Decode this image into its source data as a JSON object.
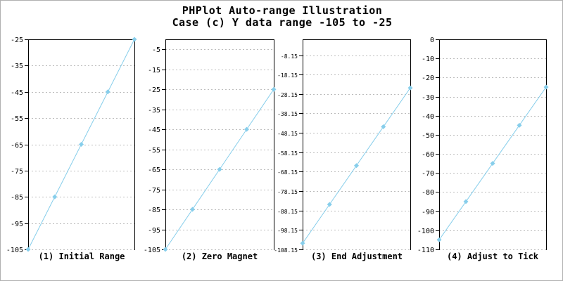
{
  "page_title": {
    "line1": "PHPlot Auto-range Illustration",
    "line2": "Case (c) Y data range -105 to -25"
  },
  "colors": {
    "background": "#ffffff",
    "image_border": "#b0b0b0",
    "axis": "#000000",
    "grid": "#bdbdbd",
    "text": "#000000",
    "series": "#87CEEB"
  },
  "chart_data": [
    {
      "type": "line",
      "title": "(1) Initial Range",
      "x": [
        1,
        2,
        3,
        4,
        5
      ],
      "values": [
        -105,
        -85,
        -65,
        -45,
        -25
      ],
      "ylim": [
        -105,
        -25
      ],
      "y_ticks": [
        -25,
        -35,
        -45,
        -55,
        -65,
        -75,
        -85,
        -95,
        -105
      ],
      "marker": "diamond",
      "grid": "horizontal-dashed",
      "legend": "none"
    },
    {
      "type": "line",
      "title": "(2) Zero Magnet",
      "x": [
        1,
        2,
        3,
        4,
        5
      ],
      "values": [
        -105,
        -85,
        -65,
        -45,
        -25
      ],
      "ylim": [
        -105,
        0
      ],
      "y_ticks": [
        -5,
        -15,
        -25,
        -35,
        -45,
        -55,
        -65,
        -75,
        -85,
        -95,
        -105
      ],
      "marker": "diamond",
      "grid": "horizontal-dashed",
      "legend": "none"
    },
    {
      "type": "line",
      "title": "(3) End Adjustment",
      "x": [
        1,
        2,
        3,
        4,
        5
      ],
      "values": [
        -105,
        -85,
        -65,
        -45,
        -25
      ],
      "ylim": [
        -108.15,
        0
      ],
      "y_ticks": [
        -8.15,
        -18.15,
        -28.15,
        -38.15,
        -48.15,
        -58.15,
        -68.15,
        -78.15,
        -88.15,
        -98.15,
        -108.15
      ],
      "marker": "diamond",
      "grid": "horizontal-dashed",
      "legend": "none"
    },
    {
      "type": "line",
      "title": "(4) Adjust to Tick",
      "x": [
        1,
        2,
        3,
        4,
        5
      ],
      "values": [
        -105,
        -85,
        -65,
        -45,
        -25
      ],
      "ylim": [
        -110,
        0
      ],
      "y_ticks": [
        0,
        -10,
        -20,
        -30,
        -40,
        -50,
        -60,
        -70,
        -80,
        -90,
        -100,
        -110
      ],
      "marker": "diamond",
      "grid": "horizontal-dashed",
      "legend": "none"
    }
  ]
}
